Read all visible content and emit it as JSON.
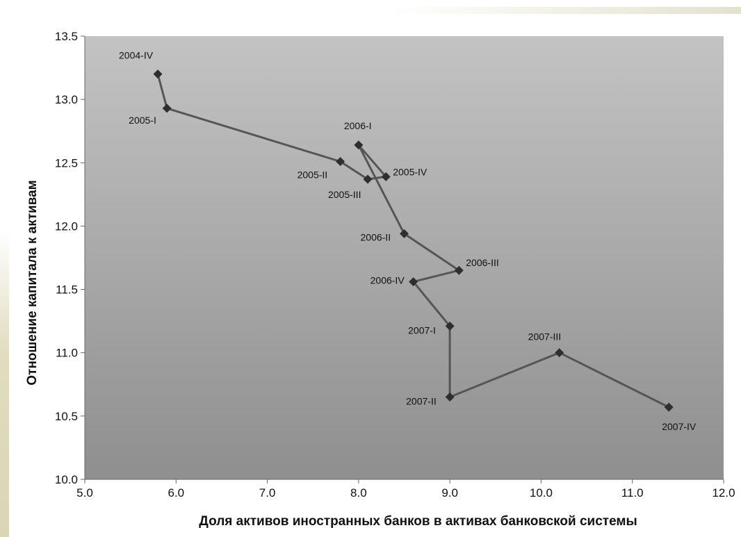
{
  "chart_data": {
    "type": "line",
    "title": "",
    "xlabel": "Доля активов иностранных банков в активах банковской системы",
    "ylabel": "Отношение капитала к активам",
    "xlim": [
      5.0,
      12.0
    ],
    "ylim": [
      10.0,
      13.5
    ],
    "x_ticks": [
      "5.0",
      "6.0",
      "7.0",
      "8.0",
      "9.0",
      "10.0",
      "11.0",
      "12.0"
    ],
    "y_ticks": [
      "10.0",
      "10.5",
      "11.0",
      "11.5",
      "12.0",
      "12.5",
      "13.0",
      "13.5"
    ],
    "grid": false,
    "legend": "none",
    "colors": {
      "line": "#555555",
      "marker": "#2e2e2e",
      "plot_bg_top": "#c3c3c3",
      "plot_bg_bottom": "#8f8f8f"
    },
    "points": [
      {
        "label": "2004-IV",
        "x": 5.8,
        "y": 13.2
      },
      {
        "label": "2005-I",
        "x": 5.9,
        "y": 12.93
      },
      {
        "label": "2005-II",
        "x": 7.8,
        "y": 12.51
      },
      {
        "label": "2005-III",
        "x": 8.1,
        "y": 12.37
      },
      {
        "label": "2005-IV",
        "x": 8.3,
        "y": 12.39
      },
      {
        "label": "2006-I",
        "x": 8.0,
        "y": 12.64
      },
      {
        "label": "2006-II",
        "x": 8.5,
        "y": 11.94
      },
      {
        "label": "2006-III",
        "x": 9.1,
        "y": 11.65
      },
      {
        "label": "2006-IV",
        "x": 8.6,
        "y": 11.56
      },
      {
        "label": "2007-I",
        "x": 9.0,
        "y": 11.21
      },
      {
        "label": "2007-II",
        "x": 9.0,
        "y": 10.65
      },
      {
        "label": "2007-III",
        "x": 10.2,
        "y": 11.0
      },
      {
        "label": "2007-IV",
        "x": 11.4,
        "y": 10.57
      }
    ]
  }
}
